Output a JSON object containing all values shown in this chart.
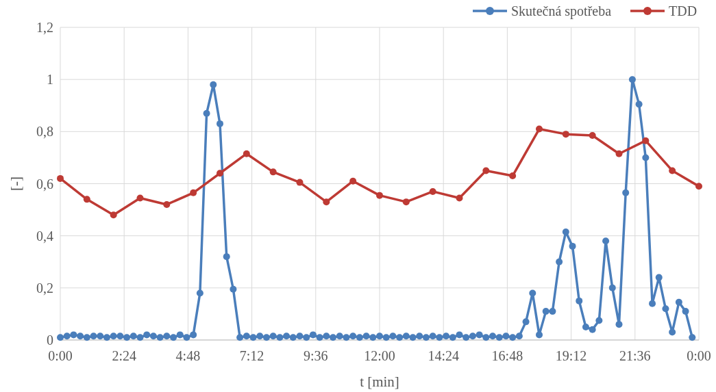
{
  "chart_data": {
    "type": "line",
    "xlabel": "t [min]",
    "ylabel": "[-]",
    "xlim": [
      0,
      24
    ],
    "ylim": [
      0,
      1.2
    ],
    "xticks": [
      {
        "value": 0,
        "label": "0:00"
      },
      {
        "value": 2.4,
        "label": "2:24"
      },
      {
        "value": 4.8,
        "label": "4:48"
      },
      {
        "value": 7.2,
        "label": "7:12"
      },
      {
        "value": 9.6,
        "label": "9:36"
      },
      {
        "value": 12,
        "label": "12:00"
      },
      {
        "value": 14.4,
        "label": "14:24"
      },
      {
        "value": 16.8,
        "label": "16:48"
      },
      {
        "value": 19.2,
        "label": "19:12"
      },
      {
        "value": 21.6,
        "label": "21:36"
      },
      {
        "value": 24,
        "label": "0:00"
      }
    ],
    "yticks": [
      0,
      {
        "value": 0.2,
        "label": "0,2"
      },
      {
        "value": 0.4,
        "label": "0,4"
      },
      {
        "value": 0.6,
        "label": "0,6"
      },
      {
        "value": 0.8,
        "label": "0,8"
      },
      1,
      {
        "value": 1.2,
        "label": "1,2"
      }
    ],
    "grid": true,
    "legend": "top right",
    "marker": "circle",
    "line_style": "solid",
    "series": [
      {
        "name": "Skutečná spotřeba",
        "color": "#4a7ebb",
        "x": [
          0,
          0.25,
          0.5,
          0.75,
          1,
          1.25,
          1.5,
          1.75,
          2,
          2.25,
          2.5,
          2.75,
          3,
          3.25,
          3.5,
          3.75,
          4,
          4.25,
          4.5,
          4.75,
          5,
          5.25,
          5.5,
          5.75,
          6,
          6.25,
          6.5,
          6.75,
          7,
          7.25,
          7.5,
          7.75,
          8,
          8.25,
          8.5,
          8.75,
          9,
          9.25,
          9.5,
          9.75,
          10,
          10.25,
          10.5,
          10.75,
          11,
          11.25,
          11.5,
          11.75,
          12,
          12.25,
          12.5,
          12.75,
          13,
          13.25,
          13.5,
          13.75,
          14,
          14.25,
          14.5,
          14.75,
          15,
          15.25,
          15.5,
          15.75,
          16,
          16.25,
          16.5,
          16.75,
          17,
          17.25,
          17.5,
          17.75,
          18,
          18.25,
          18.5,
          18.75,
          19,
          19.25,
          19.5,
          19.75,
          20,
          20.25,
          20.5,
          20.75,
          21,
          21.25,
          21.5,
          21.75,
          22,
          22.25,
          22.5,
          22.75,
          23,
          23.25,
          23.5,
          23.75
        ],
        "values": [
          0.01,
          0.015,
          0.02,
          0.015,
          0.01,
          0.015,
          0.015,
          0.01,
          0.015,
          0.015,
          0.01,
          0.015,
          0.01,
          0.02,
          0.015,
          0.01,
          0.015,
          0.01,
          0.02,
          0.01,
          0.02,
          0.18,
          0.87,
          0.98,
          0.83,
          0.32,
          0.195,
          0.01,
          0.015,
          0.01,
          0.015,
          0.01,
          0.015,
          0.01,
          0.015,
          0.01,
          0.015,
          0.01,
          0.02,
          0.01,
          0.015,
          0.01,
          0.015,
          0.01,
          0.015,
          0.01,
          0.015,
          0.01,
          0.015,
          0.01,
          0.015,
          0.01,
          0.015,
          0.01,
          0.015,
          0.01,
          0.015,
          0.01,
          0.015,
          0.01,
          0.02,
          0.01,
          0.015,
          0.02,
          0.01,
          0.015,
          0.01,
          0.015,
          0.01,
          0.015,
          0.07,
          0.18,
          0.02,
          0.11,
          0.11,
          0.3,
          0.415,
          0.36,
          0.15,
          0.05,
          0.04,
          0.075,
          0.38,
          0.2,
          0.06,
          0.565,
          1.0,
          0.905,
          0.7,
          0.14,
          0.24,
          0.12,
          0.03,
          0.145,
          0.11,
          0.01
        ]
      },
      {
        "name": "TDD",
        "color": "#be3a34",
        "x": [
          0,
          1,
          2,
          3,
          4,
          5,
          6,
          7,
          8,
          9,
          10,
          11,
          12,
          13,
          14,
          15,
          16,
          17,
          18,
          19,
          20,
          21,
          22,
          23,
          24
        ],
        "values": [
          0.62,
          0.54,
          0.48,
          0.545,
          0.52,
          0.565,
          0.64,
          0.715,
          0.645,
          0.605,
          0.53,
          0.61,
          0.555,
          0.53,
          0.57,
          0.545,
          0.65,
          0.63,
          0.81,
          0.79,
          0.785,
          0.715,
          0.765,
          0.65,
          0.59
        ]
      }
    ]
  }
}
